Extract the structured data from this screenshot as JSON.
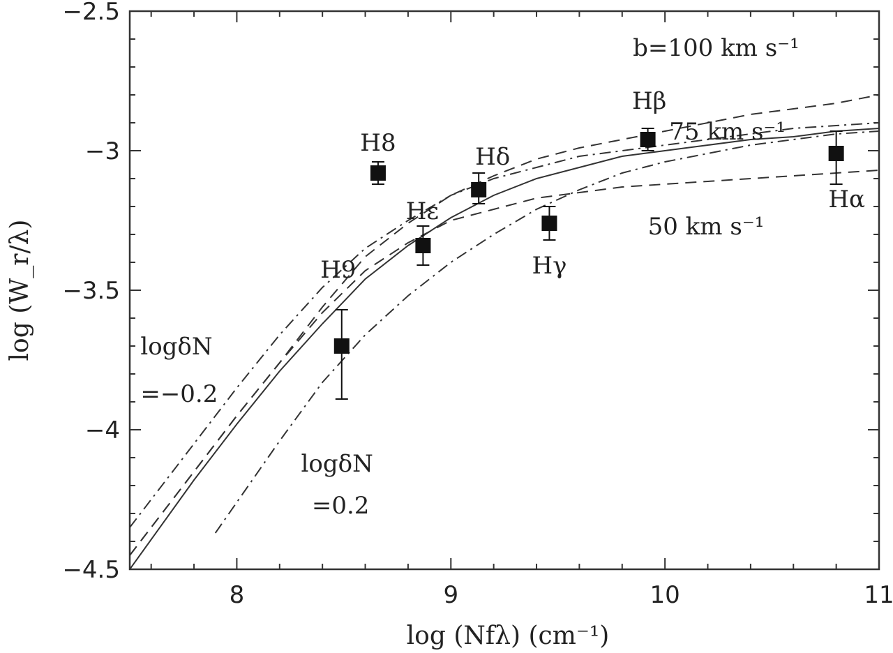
{
  "chart_data": {
    "type": "scatter",
    "title": "",
    "xlabel": "log (Nfλ) (cm⁻¹)",
    "ylabel": "log (W_r/λ)",
    "xlim": [
      7.5,
      11
    ],
    "ylim": [
      -4.5,
      -2.5
    ],
    "x_ticks": [
      8,
      9,
      10,
      11
    ],
    "x_tick_labels": [
      "8",
      "9",
      "10",
      "11"
    ],
    "y_ticks": [
      -2.5,
      -3,
      -3.5,
      -4,
      -4.5
    ],
    "y_tick_labels": [
      "−2.5",
      "−3",
      "−3.5",
      "−4",
      "−4.5"
    ],
    "grid": false,
    "points": [
      {
        "label": "H9",
        "x": 8.49,
        "y": -3.7,
        "err_low": 0.19,
        "err_high": 0.13
      },
      {
        "label": "H8",
        "x": 8.66,
        "y": -3.08,
        "err_low": 0.04,
        "err_high": 0.04
      },
      {
        "label": "Hε",
        "x": 8.87,
        "y": -3.34,
        "err_low": 0.07,
        "err_high": 0.07
      },
      {
        "label": "Hδ",
        "x": 9.13,
        "y": -3.14,
        "err_low": 0.05,
        "err_high": 0.06
      },
      {
        "label": "Hγ",
        "x": 9.46,
        "y": -3.26,
        "err_low": 0.06,
        "err_high": 0.06
      },
      {
        "label": "Hβ",
        "x": 9.92,
        "y": -2.96,
        "err_low": 0.04,
        "err_high": 0.04
      },
      {
        "label": "Hα",
        "x": 10.8,
        "y": -3.01,
        "err_low": 0.11,
        "err_high": 0.08
      }
    ],
    "series": [
      {
        "style": "dashed",
        "x": [
          7.5,
          7.8,
          8.0,
          8.2,
          8.4,
          8.6,
          8.8,
          9.0,
          9.2,
          9.4,
          9.6,
          9.8,
          10.0,
          10.2,
          10.4,
          10.6,
          10.8,
          11.0
        ],
        "y": [
          -4.45,
          -4.15,
          -3.95,
          -3.76,
          -3.56,
          -3.38,
          -3.26,
          -3.16,
          -3.09,
          -3.03,
          -2.99,
          -2.96,
          -2.93,
          -2.9,
          -2.87,
          -2.85,
          -2.83,
          -2.8
        ]
      },
      {
        "style": "dashed",
        "x": [
          7.5,
          7.8,
          8.0,
          8.2,
          8.4,
          8.6,
          8.8,
          9.0,
          9.2,
          9.4,
          9.6,
          9.8,
          10.0,
          10.2,
          10.4,
          10.6,
          10.8,
          11.0
        ],
        "y": [
          -4.45,
          -4.15,
          -3.95,
          -3.76,
          -3.58,
          -3.43,
          -3.33,
          -3.25,
          -3.21,
          -3.17,
          -3.15,
          -3.13,
          -3.12,
          -3.11,
          -3.1,
          -3.09,
          -3.08,
          -3.07
        ]
      },
      {
        "style": "solid",
        "x": [
          7.5,
          7.8,
          8.0,
          8.2,
          8.4,
          8.6,
          8.8,
          9.0,
          9.2,
          9.4,
          9.6,
          9.8,
          10.0,
          10.2,
          10.4,
          10.6,
          10.8,
          11.0
        ],
        "y": [
          -4.5,
          -4.18,
          -3.98,
          -3.79,
          -3.62,
          -3.46,
          -3.34,
          -3.24,
          -3.16,
          -3.1,
          -3.06,
          -3.02,
          -3.0,
          -2.98,
          -2.96,
          -2.95,
          -2.93,
          -2.92
        ]
      },
      {
        "style": "dashdot",
        "x": [
          7.5,
          7.8,
          8.0,
          8.2,
          8.4,
          8.6,
          8.8,
          9.0,
          9.2,
          9.4,
          9.6,
          9.8,
          10.0,
          10.2,
          10.4,
          10.6,
          10.8,
          11.0
        ],
        "y": [
          -4.35,
          -4.05,
          -3.85,
          -3.66,
          -3.49,
          -3.35,
          -3.25,
          -3.16,
          -3.1,
          -3.06,
          -3.02,
          -3.0,
          -2.98,
          -2.96,
          -2.94,
          -2.92,
          -2.91,
          -2.9
        ]
      },
      {
        "style": "dashdot",
        "x": [
          7.9,
          8.2,
          8.4,
          8.6,
          8.8,
          9.0,
          9.2,
          9.4,
          9.6,
          9.8,
          10.0,
          10.2,
          10.4,
          10.6,
          10.8,
          11.0
        ],
        "y": [
          -4.37,
          -4.04,
          -3.83,
          -3.66,
          -3.52,
          -3.4,
          -3.3,
          -3.21,
          -3.14,
          -3.08,
          -3.04,
          -3.01,
          -2.98,
          -2.96,
          -2.94,
          -2.93
        ]
      }
    ],
    "annotations": [
      {
        "text": "b=100 km s⁻¹",
        "x": 9.85,
        "y": -2.66
      },
      {
        "text": "75 km s⁻¹",
        "x": 10.02,
        "y": -2.96
      },
      {
        "text": "50 km s⁻¹",
        "x": 9.92,
        "y": -3.3
      },
      {
        "text": "logδN",
        "x": 7.55,
        "y": -3.73
      },
      {
        "text": "=−0.2",
        "x": 7.55,
        "y": -3.9
      },
      {
        "text": "logδN",
        "x": 8.3,
        "y": -4.15
      },
      {
        "text": "=0.2",
        "x": 8.35,
        "y": -4.3
      }
    ]
  }
}
